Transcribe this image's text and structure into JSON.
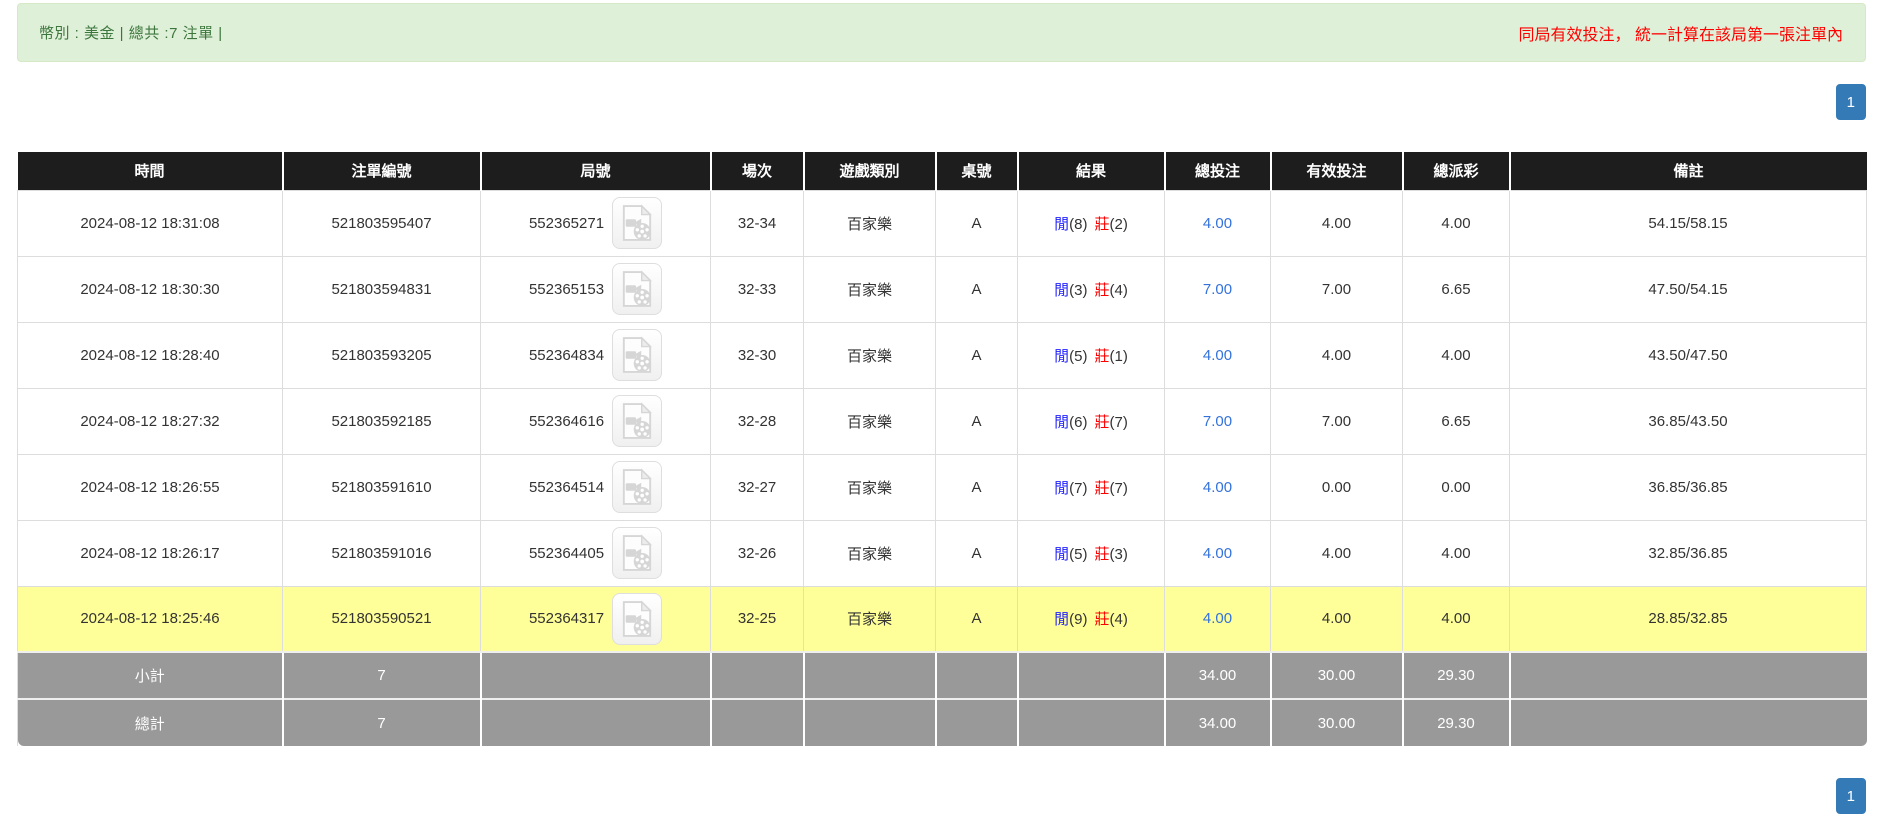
{
  "summary_bar": {
    "left_text": "幣別 : 美金 | 總共 :7 注單 |",
    "right_text": "同局有效投注， 統一計算在該局第一張注單內"
  },
  "pagination": {
    "current_page": "1"
  },
  "table": {
    "columns": [
      "時間",
      "注單編號",
      "局號",
      "場次",
      "遊戲類別",
      "桌號",
      "結果",
      "總投注",
      "有效投注",
      "總派彩",
      "備註"
    ],
    "rows": [
      {
        "time": "2024-08-12 18:31:08",
        "bet_id": "521803595407",
        "round_id": "552365271",
        "session": "32-34",
        "game_type": "百家樂",
        "table_no": "A",
        "result": {
          "player_label": "閒",
          "player_score": "(8)",
          "banker_label": "莊",
          "banker_score": "(2)"
        },
        "total_bet": "4.00",
        "valid_bet": "4.00",
        "payout": "4.00",
        "remark": "54.15/58.15",
        "highlight": false
      },
      {
        "time": "2024-08-12 18:30:30",
        "bet_id": "521803594831",
        "round_id": "552365153",
        "session": "32-33",
        "game_type": "百家樂",
        "table_no": "A",
        "result": {
          "player_label": "閒",
          "player_score": "(3)",
          "banker_label": "莊",
          "banker_score": "(4)"
        },
        "total_bet": "7.00",
        "valid_bet": "7.00",
        "payout": "6.65",
        "remark": "47.50/54.15",
        "highlight": false
      },
      {
        "time": "2024-08-12 18:28:40",
        "bet_id": "521803593205",
        "round_id": "552364834",
        "session": "32-30",
        "game_type": "百家樂",
        "table_no": "A",
        "result": {
          "player_label": "閒",
          "player_score": "(5)",
          "banker_label": "莊",
          "banker_score": "(1)"
        },
        "total_bet": "4.00",
        "valid_bet": "4.00",
        "payout": "4.00",
        "remark": "43.50/47.50",
        "highlight": false
      },
      {
        "time": "2024-08-12 18:27:32",
        "bet_id": "521803592185",
        "round_id": "552364616",
        "session": "32-28",
        "game_type": "百家樂",
        "table_no": "A",
        "result": {
          "player_label": "閒",
          "player_score": "(6)",
          "banker_label": "莊",
          "banker_score": "(7)"
        },
        "total_bet": "7.00",
        "valid_bet": "7.00",
        "payout": "6.65",
        "remark": "36.85/43.50",
        "highlight": false
      },
      {
        "time": "2024-08-12 18:26:55",
        "bet_id": "521803591610",
        "round_id": "552364514",
        "session": "32-27",
        "game_type": "百家樂",
        "table_no": "A",
        "result": {
          "player_label": "閒",
          "player_score": "(7)",
          "banker_label": "莊",
          "banker_score": "(7)"
        },
        "total_bet": "4.00",
        "valid_bet": "0.00",
        "payout": "0.00",
        "remark": "36.85/36.85",
        "highlight": false
      },
      {
        "time": "2024-08-12 18:26:17",
        "bet_id": "521803591016",
        "round_id": "552364405",
        "session": "32-26",
        "game_type": "百家樂",
        "table_no": "A",
        "result": {
          "player_label": "閒",
          "player_score": "(5)",
          "banker_label": "莊",
          "banker_score": "(3)"
        },
        "total_bet": "4.00",
        "valid_bet": "4.00",
        "payout": "4.00",
        "remark": "32.85/36.85",
        "highlight": false
      },
      {
        "time": "2024-08-12 18:25:46",
        "bet_id": "521803590521",
        "round_id": "552364317",
        "session": "32-25",
        "game_type": "百家樂",
        "table_no": "A",
        "result": {
          "player_label": "閒",
          "player_score": "(9)",
          "banker_label": "莊",
          "banker_score": "(4)"
        },
        "total_bet": "4.00",
        "valid_bet": "4.00",
        "payout": "4.00",
        "remark": "28.85/32.85",
        "highlight": true
      }
    ],
    "subtotal": {
      "label": "小計",
      "count": "7",
      "total_bet": "34.00",
      "valid_bet": "30.00",
      "payout": "29.30"
    },
    "total": {
      "label": "總計",
      "count": "7",
      "total_bet": "34.00",
      "valid_bet": "30.00",
      "payout": "29.30"
    }
  },
  "icons": {
    "round_replay": "video-file-icon"
  },
  "colors": {
    "alert_bg": "#dff0d8",
    "alert_text": "#3c763d",
    "note_red": "#ff0000",
    "header_bg": "#1d1d1d",
    "link_blue": "#3372dd",
    "player_blue": "#2222ff",
    "banker_red": "#ff0000",
    "highlight_yellow": "#ffff99",
    "summary_gray": "#999999",
    "pagination_blue": "#337ab7"
  }
}
